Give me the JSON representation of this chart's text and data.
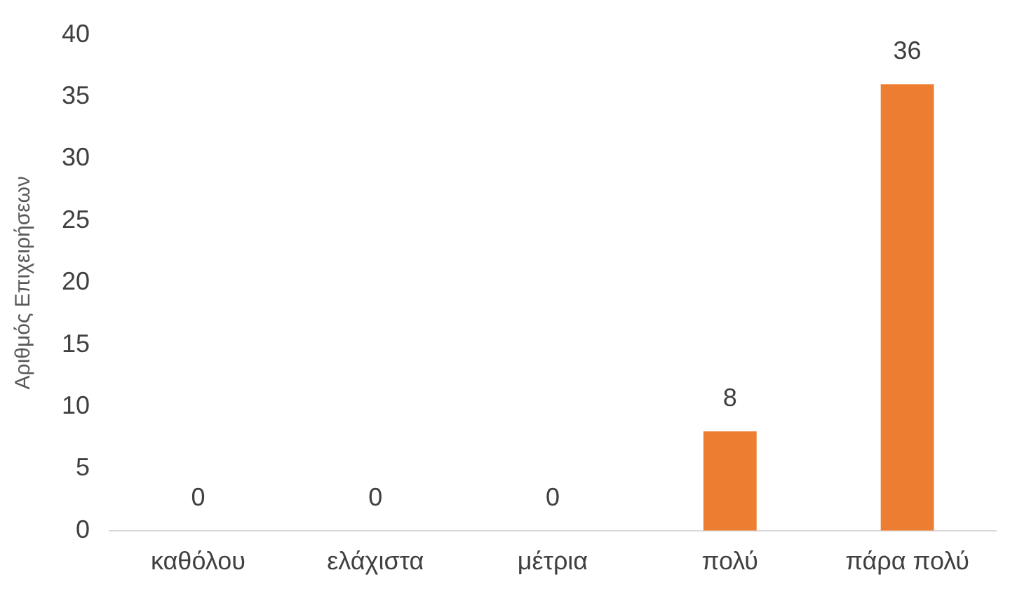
{
  "chart_data": {
    "type": "bar",
    "ylabel": "Αριθμός Επιχειρήσεων",
    "categories": [
      "καθόλου",
      "ελάχιστα",
      "μέτρια",
      "πολύ",
      "πάρα πολύ"
    ],
    "values": [
      0,
      0,
      0,
      8,
      36
    ],
    "color": "#ed7d31",
    "ylim": [
      0,
      40
    ],
    "yticks": [
      0,
      5,
      10,
      15,
      20,
      25,
      30,
      35,
      40
    ],
    "grid": false,
    "legend": false,
    "data_labels": true
  }
}
